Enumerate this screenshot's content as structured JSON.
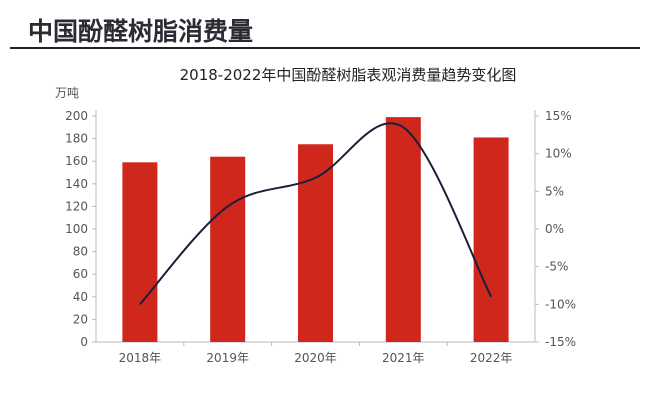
{
  "header": {
    "title": "中国酚醛树脂消费量"
  },
  "chart_data": {
    "type": "bar+line",
    "title": "2018-2022年中国酚醛树脂表观消费量趋势变化图",
    "ylabel": "万吨",
    "categories": [
      "2018年",
      "2019年",
      "2020年",
      "2021年",
      "2022年"
    ],
    "series": [
      {
        "type": "bar",
        "axis": "left",
        "values": [
          159,
          164,
          175,
          199,
          181
        ],
        "color": "#d0271d"
      },
      {
        "type": "line",
        "axis": "right",
        "values": [
          -10,
          3,
          6.8,
          13.5,
          -9
        ],
        "color": "#1a1f3a"
      }
    ],
    "ylim": [
      0,
      200
    ],
    "yticks": [
      "0",
      "20",
      "40",
      "60",
      "80",
      "100",
      "120",
      "140",
      "160",
      "180",
      "200"
    ],
    "y2lim": [
      -15,
      15
    ],
    "y2ticks": [
      "-15%",
      "-10%",
      "-5%",
      "0%",
      "5%",
      "10%",
      "15%"
    ],
    "grid": false
  }
}
